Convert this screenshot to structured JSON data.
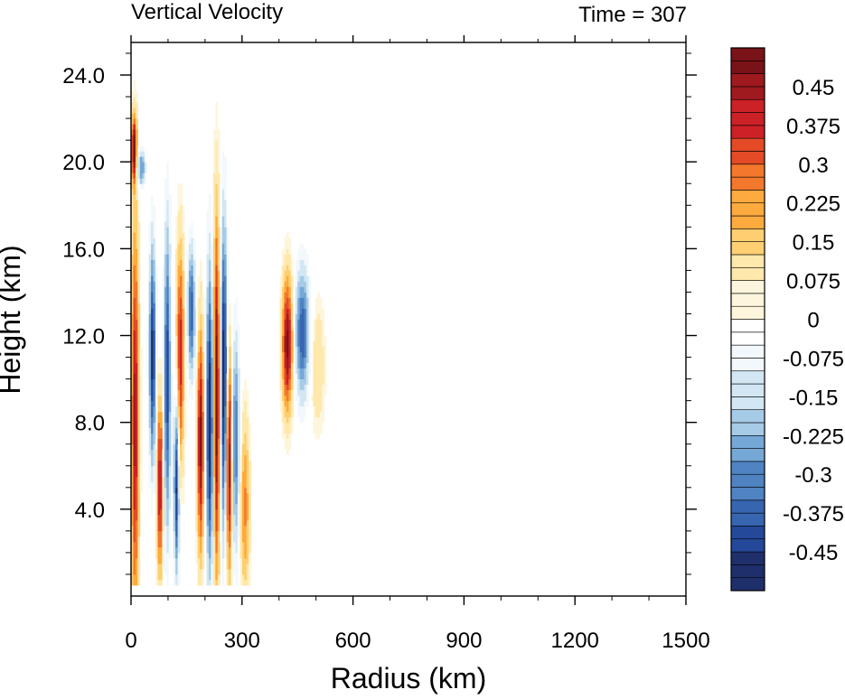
{
  "chart_data": {
    "type": "heatmap",
    "title": "Vertical Velocity",
    "subtitle": "Time = 307",
    "xlabel": "Radius (km)",
    "ylabel": "Height (km)",
    "xlim": [
      0,
      1500
    ],
    "ylim": [
      0,
      25.5
    ],
    "x_ticks": [
      0,
      300,
      600,
      900,
      1200,
      1500
    ],
    "x_tick_labels": [
      "0",
      "300",
      "600",
      "900",
      "1200",
      "1500"
    ],
    "y_ticks": [
      4,
      8,
      12,
      16,
      20,
      24
    ],
    "y_tick_labels": [
      "4.0",
      "8.0",
      "12.0",
      "16.0",
      "20.0",
      "24.0"
    ],
    "colorbar": {
      "min": -0.525,
      "max": 0.525,
      "step": 0.025,
      "labels": [
        "0.45",
        "0.375",
        "0.3",
        "0.225",
        "0.15",
        "0.075",
        "0",
        "-0.075",
        "-0.15",
        "-0.225",
        "-0.3",
        "-0.375",
        "-0.45"
      ],
      "label_values": [
        0.45,
        0.375,
        0.3,
        0.225,
        0.15,
        0.075,
        0,
        -0.075,
        -0.15,
        -0.225,
        -0.3,
        -0.375,
        -0.45
      ],
      "palette": [
        "#1f2f6b",
        "#24489a",
        "#3765b0",
        "#4f83c2",
        "#76a8d6",
        "#a6cbe6",
        "#d2e7f3",
        "#f2f8fc",
        "#ffffff",
        "#fdf6dc",
        "#fee8ac",
        "#fdcf70",
        "#fdaa3e",
        "#f3782c",
        "#e34a25",
        "#cc2127",
        "#9e1a1f",
        "#7a1317"
      ]
    },
    "features": [
      {
        "r": 8,
        "z": 8,
        "dr": 10,
        "dz": 9,
        "w": 0.45
      },
      {
        "r": 5,
        "z": 20.5,
        "dr": 7,
        "dz": 1.5,
        "w": 0.5
      },
      {
        "r": 25,
        "z": 19.6,
        "dr": 12,
        "dz": 0.9,
        "w": -0.3
      },
      {
        "r": 55,
        "z": 11,
        "dr": 9,
        "dz": 5,
        "w": -0.5
      },
      {
        "r": 75,
        "z": 5,
        "dr": 8,
        "dz": 4,
        "w": 0.45
      },
      {
        "r": 95,
        "z": 10,
        "dr": 9,
        "dz": 7,
        "w": -0.45
      },
      {
        "r": 120,
        "z": 5,
        "dr": 7,
        "dz": 4,
        "w": -0.5
      },
      {
        "r": 130,
        "z": 11,
        "dr": 10,
        "dz": 5,
        "w": 0.4
      },
      {
        "r": 160,
        "z": 13,
        "dr": 10,
        "dz": 3,
        "w": -0.4
      },
      {
        "r": 185,
        "z": 7,
        "dr": 9,
        "dz": 5,
        "w": 0.5
      },
      {
        "r": 210,
        "z": 8,
        "dr": 10,
        "dz": 7,
        "w": -0.55
      },
      {
        "r": 228,
        "z": 9,
        "dr": 9,
        "dz": 8,
        "w": 0.55
      },
      {
        "r": 248,
        "z": 10,
        "dr": 9,
        "dz": 7,
        "w": -0.55
      },
      {
        "r": 262,
        "z": 6,
        "dr": 8,
        "dz": 5,
        "w": 0.5
      },
      {
        "r": 280,
        "z": 7,
        "dr": 10,
        "dz": 5,
        "w": -0.35
      },
      {
        "r": 305,
        "z": 4,
        "dr": 12,
        "dz": 4,
        "w": 0.25
      },
      {
        "r": 420,
        "z": 11.5,
        "dr": 14,
        "dz": 3,
        "w": 0.5
      },
      {
        "r": 460,
        "z": 12,
        "dr": 20,
        "dz": 3,
        "w": -0.4
      },
      {
        "r": 500,
        "z": 10.5,
        "dr": 20,
        "dz": 3,
        "w": 0.12
      }
    ]
  }
}
